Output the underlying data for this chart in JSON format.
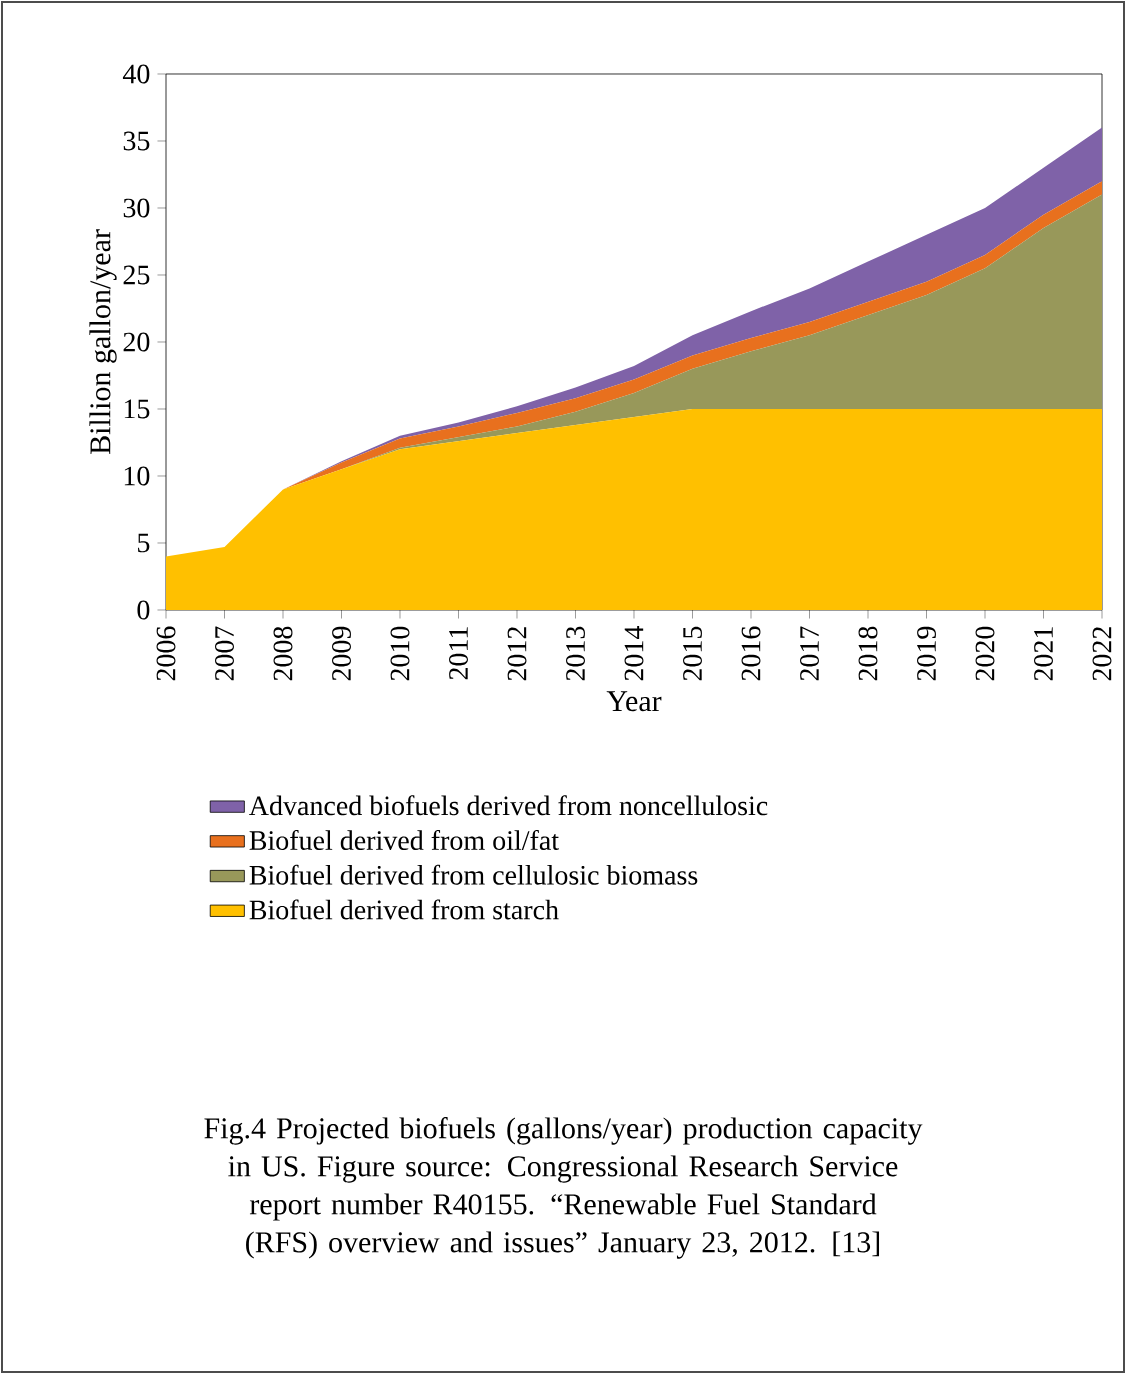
{
  "chart_data": {
    "type": "area",
    "stacked": true,
    "xlabel": "Year",
    "ylabel": "Billion gallon/year",
    "categories": [
      "2006",
      "2007",
      "2008",
      "2009",
      "2010",
      "2011",
      "2012",
      "2013",
      "2014",
      "2015",
      "2016",
      "2017",
      "2018",
      "2019",
      "2020",
      "2021",
      "2022"
    ],
    "series": [
      {
        "name": "Biofuel derived from starch",
        "color": "#ffc000",
        "values": [
          4.0,
          4.7,
          9.0,
          10.5,
          12.0,
          12.6,
          13.2,
          13.8,
          14.4,
          15.0,
          15.0,
          15.0,
          15.0,
          15.0,
          15.0,
          15.0,
          15.0
        ]
      },
      {
        "name": "Biofuel derived from cellulosic biomass",
        "color": "#98985a",
        "values": [
          0,
          0,
          0,
          0,
          0.1,
          0.3,
          0.5,
          1.0,
          1.8,
          3.0,
          4.3,
          5.5,
          7.0,
          8.5,
          10.5,
          13.5,
          16.0
        ]
      },
      {
        "name": "Biofuel derived from oil/fat",
        "color": "#e8701e",
        "values": [
          0,
          0,
          0,
          0.5,
          0.7,
          0.8,
          1.0,
          1.0,
          1.0,
          1.0,
          1.0,
          1.0,
          1.0,
          1.0,
          1.0,
          1.0,
          1.0
        ]
      },
      {
        "name": "Advanced biofuels derived from noncellulosic",
        "color": "#7f62a8",
        "values": [
          0,
          0,
          0,
          0.1,
          0.2,
          0.3,
          0.5,
          0.8,
          1.0,
          1.5,
          2.0,
          2.5,
          3.0,
          3.5,
          3.5,
          3.5,
          4.0
        ]
      }
    ],
    "ylim": [
      0,
      40
    ],
    "yticks": [
      0,
      5,
      10,
      15,
      20,
      25,
      30,
      35,
      40
    ],
    "legend": "bottom",
    "grid": false,
    "annotations": [
      "Fig.4 Projected biofuels (gallons/year) production capacity in US. Figure source: Congressional Research Service report number R40155. “Renewable Fuel Standard (RFS) overview and issues” January 23, 2012. [13]"
    ]
  }
}
